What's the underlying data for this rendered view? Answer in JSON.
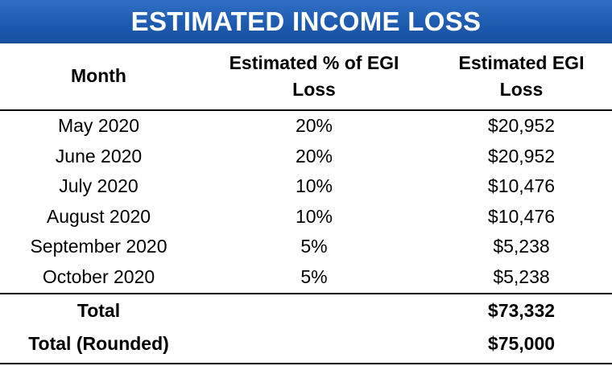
{
  "title": "ESTIMATED INCOME LOSS",
  "headers": {
    "month": "Month",
    "pct_line1": "Estimated % of EGI",
    "pct_line2": "Loss",
    "loss_line1": "Estimated EGI",
    "loss_line2": "Loss"
  },
  "rows": [
    {
      "month": "May 2020",
      "pct": "20%",
      "loss": "$20,952"
    },
    {
      "month": "June 2020",
      "pct": "20%",
      "loss": "$20,952"
    },
    {
      "month": "July 2020",
      "pct": "10%",
      "loss": "$10,476"
    },
    {
      "month": "August 2020",
      "pct": "10%",
      "loss": "$10,476"
    },
    {
      "month": "September 2020",
      "pct": "5%",
      "loss": "$5,238"
    },
    {
      "month": "October 2020",
      "pct": "5%",
      "loss": "$5,238"
    }
  ],
  "totals": [
    {
      "label": "Total",
      "pct": "",
      "loss": "$73,332"
    },
    {
      "label": "Total (Rounded)",
      "pct": "",
      "loss": "$75,000"
    }
  ],
  "colors": {
    "banner": "#1d5bb0",
    "banner_text": "#ffffff"
  }
}
